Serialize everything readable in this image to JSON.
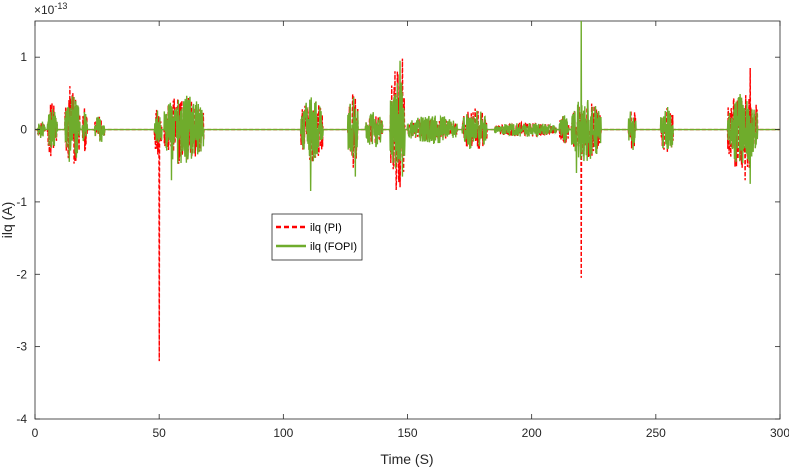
{
  "chart_data": {
    "type": "line",
    "title": "",
    "xlabel": "Time (S)",
    "ylabel": "ilq (A)",
    "y_exponent_label": "×10",
    "y_exponent_power": "-13",
    "xlim": [
      0,
      300
    ],
    "ylim": [
      -4,
      1.5
    ],
    "x_ticks": [
      0,
      50,
      100,
      150,
      200,
      250,
      300
    ],
    "x_tick_labels": [
      "0",
      "50",
      "100",
      "150",
      "200",
      "250",
      "300"
    ],
    "y_ticks": [
      -4,
      -3,
      -2,
      -1,
      0,
      1
    ],
    "y_tick_labels": [
      "-4",
      "-3",
      "-2",
      "-1",
      "0",
      "1"
    ],
    "grid": false,
    "legend_position": "center-left",
    "colors": {
      "pi": "#ff0000",
      "fopi": "#6fac2c",
      "axis": "#262626"
    },
    "series": [
      {
        "name": "ilq (PI)",
        "style": "dashed",
        "color": "#ff0000",
        "bursts": [
          {
            "t0": 1,
            "t1": 4,
            "amp": 0.1
          },
          {
            "t0": 5,
            "t1": 9,
            "amp": 0.4
          },
          {
            "t0": 12,
            "t1": 18,
            "amp": 0.6
          },
          {
            "t0": 19,
            "t1": 21,
            "amp": 0.3
          },
          {
            "t0": 24,
            "t1": 28,
            "amp": 0.2
          },
          {
            "t0": 48,
            "t1": 51,
            "amp": 0.35
          },
          {
            "t0": 52,
            "t1": 68,
            "amp": 0.5
          },
          {
            "t0": 107,
            "t1": 116,
            "amp": 0.45
          },
          {
            "t0": 126,
            "t1": 130,
            "amp": 0.55
          },
          {
            "t0": 133,
            "t1": 140,
            "amp": 0.2
          },
          {
            "t0": 143,
            "t1": 149,
            "amp": 0.9
          },
          {
            "t0": 150,
            "t1": 170,
            "amp": 0.15
          },
          {
            "t0": 172,
            "t1": 182,
            "amp": 0.3
          },
          {
            "t0": 185,
            "t1": 210,
            "amp": 0.1
          },
          {
            "t0": 211,
            "t1": 215,
            "amp": 0.2
          },
          {
            "t0": 216,
            "t1": 228,
            "amp": 0.4
          },
          {
            "t0": 239,
            "t1": 242,
            "amp": 0.3
          },
          {
            "t0": 252,
            "t1": 257,
            "amp": 0.35
          },
          {
            "t0": 279,
            "t1": 291,
            "amp": 0.6
          }
        ],
        "spikes": [
          {
            "t": 50,
            "v": -3.2
          },
          {
            "t": 220,
            "v": -2.05
          },
          {
            "t": 148,
            "v": 0.98
          },
          {
            "t": 288,
            "v": 0.85
          },
          {
            "t": 14,
            "v": 0.6
          },
          {
            "t": 286,
            "v": -0.7
          }
        ]
      },
      {
        "name": "ilq (FOPI)",
        "style": "solid",
        "color": "#6fac2c",
        "bursts": [
          {
            "t0": 1,
            "t1": 4,
            "amp": 0.12
          },
          {
            "t0": 5,
            "t1": 9,
            "amp": 0.3
          },
          {
            "t0": 12,
            "t1": 18,
            "amp": 0.5
          },
          {
            "t0": 19,
            "t1": 21,
            "amp": 0.25
          },
          {
            "t0": 24,
            "t1": 28,
            "amp": 0.2
          },
          {
            "t0": 48,
            "t1": 51,
            "amp": 0.3
          },
          {
            "t0": 52,
            "t1": 68,
            "amp": 0.5
          },
          {
            "t0": 107,
            "t1": 116,
            "amp": 0.45
          },
          {
            "t0": 126,
            "t1": 130,
            "amp": 0.5
          },
          {
            "t0": 133,
            "t1": 140,
            "amp": 0.25
          },
          {
            "t0": 143,
            "t1": 149,
            "amp": 0.75
          },
          {
            "t0": 150,
            "t1": 170,
            "amp": 0.2
          },
          {
            "t0": 172,
            "t1": 182,
            "amp": 0.3
          },
          {
            "t0": 185,
            "t1": 210,
            "amp": 0.1
          },
          {
            "t0": 211,
            "t1": 215,
            "amp": 0.2
          },
          {
            "t0": 216,
            "t1": 228,
            "amp": 0.45
          },
          {
            "t0": 239,
            "t1": 242,
            "amp": 0.3
          },
          {
            "t0": 252,
            "t1": 257,
            "amp": 0.35
          },
          {
            "t0": 279,
            "t1": 291,
            "amp": 0.5
          }
        ],
        "spikes": [
          {
            "t": 220,
            "v": 1.5
          },
          {
            "t": 147,
            "v": 0.95
          },
          {
            "t": 148,
            "v": -0.65
          },
          {
            "t": 111,
            "v": -0.85
          },
          {
            "t": 55,
            "v": -0.7
          },
          {
            "t": 288,
            "v": -0.75
          },
          {
            "t": 129,
            "v": -0.65
          },
          {
            "t": 218,
            "v": -0.6
          }
        ]
      }
    ]
  }
}
